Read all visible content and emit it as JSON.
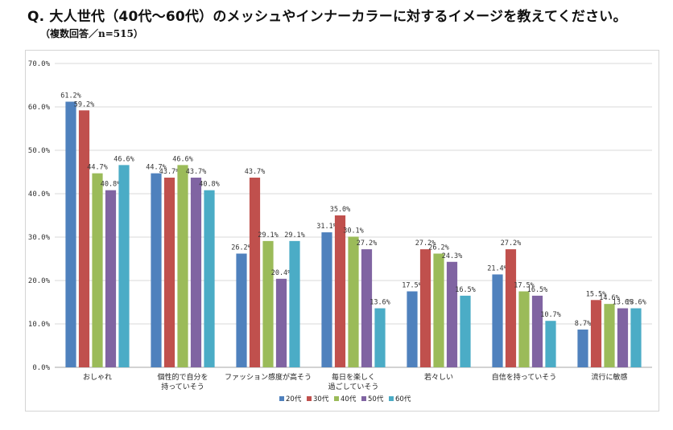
{
  "title": "Q. 大人世代（40代〜60代）のメッシュやインナーカラーに対するイメージを教えてください。",
  "subtitle": "（複数回答／n=515）",
  "colors": {
    "20代": "#4f81bd",
    "30代": "#c0504d",
    "40代": "#9bbb59",
    "50代": "#8064a2",
    "60代": "#4bacc6"
  },
  "chart_data": {
    "type": "bar",
    "categories": [
      [
        "おしゃれ"
      ],
      [
        "個性的で自分を",
        "持っていそう"
      ],
      [
        "ファッション感度が高そう"
      ],
      [
        "毎日を楽しく",
        "過ごしていそう"
      ],
      [
        "若々しい"
      ],
      [
        "自信を持っていそう"
      ],
      [
        "流行に敏感"
      ]
    ],
    "series": [
      {
        "name": "20代",
        "values": [
          61.2,
          44.7,
          26.2,
          31.1,
          17.5,
          21.4,
          8.7
        ]
      },
      {
        "name": "30代",
        "values": [
          59.2,
          43.7,
          43.7,
          35.0,
          27.2,
          27.2,
          15.5
        ]
      },
      {
        "name": "40代",
        "values": [
          44.7,
          46.6,
          29.1,
          30.1,
          26.2,
          17.5,
          14.6
        ]
      },
      {
        "name": "50代",
        "values": [
          40.8,
          43.7,
          20.4,
          27.2,
          24.3,
          16.5,
          13.6
        ]
      },
      {
        "name": "60代",
        "values": [
          46.6,
          40.8,
          29.1,
          13.6,
          16.5,
          10.7,
          13.6
        ]
      }
    ],
    "yticks": [
      "0.0%",
      "10.0%",
      "20.0%",
      "30.0%",
      "40.0%",
      "50.0%",
      "60.0%",
      "70.0%"
    ],
    "ylim": [
      0,
      70
    ],
    "grid": true,
    "legend_position": "bottom"
  }
}
